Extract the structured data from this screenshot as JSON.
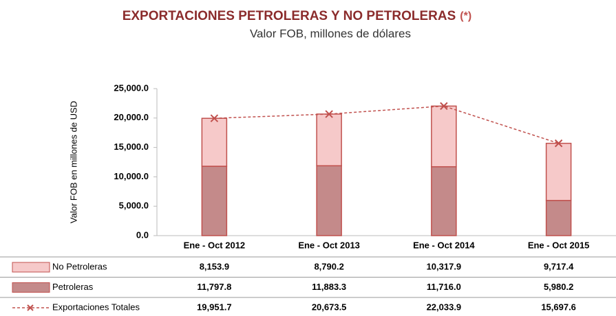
{
  "chart_data": {
    "type": "bar",
    "stacked": true,
    "title": "EXPORTACIONES PETROLERAS Y NO PETROLERAS",
    "title_note": "(*)",
    "subtitle": "Valor FOB, millones de dólares",
    "y_label": "Valor FOB  en millones de USD",
    "categories": [
      "Ene - Oct  2012",
      "Ene - Oct  2013",
      "Ene - Oct  2014",
      "Ene - Oct  2015"
    ],
    "series": [
      {
        "name": "No Petroleras",
        "type": "bar",
        "color": "#f6c9c9",
        "edge": "#c0504d",
        "values": [
          8153.9,
          8790.2,
          10317.9,
          9717.4
        ],
        "value_labels": [
          "8,153.9",
          "8,790.2",
          "10,317.9",
          "9,717.4"
        ]
      },
      {
        "name": "Petroleras",
        "type": "bar",
        "color": "#c48a8a",
        "edge": "#c0504d",
        "values": [
          11797.8,
          11883.3,
          11716.0,
          5980.2
        ],
        "value_labels": [
          "11,797.8",
          "11,883.3",
          "11,716.0",
          "5,980.2"
        ]
      },
      {
        "name": "Exportaciones Totales",
        "type": "line",
        "color": "#c0504d",
        "values": [
          19951.7,
          20673.5,
          22033.9,
          15697.6
        ],
        "value_labels": [
          "19,951.7",
          "20,673.5",
          "22,033.9",
          "15,697.6"
        ]
      }
    ],
    "ylim": [
      0,
      25000
    ],
    "yticks": [
      {
        "value": 0,
        "label": "0.0"
      },
      {
        "value": 5000,
        "label": "5,000.0"
      },
      {
        "value": 10000,
        "label": "10,000.0"
      },
      {
        "value": 15000,
        "label": "15,000.0"
      },
      {
        "value": 20000,
        "label": "20,000.0"
      },
      {
        "value": 25000,
        "label": "25,000.0"
      }
    ]
  }
}
